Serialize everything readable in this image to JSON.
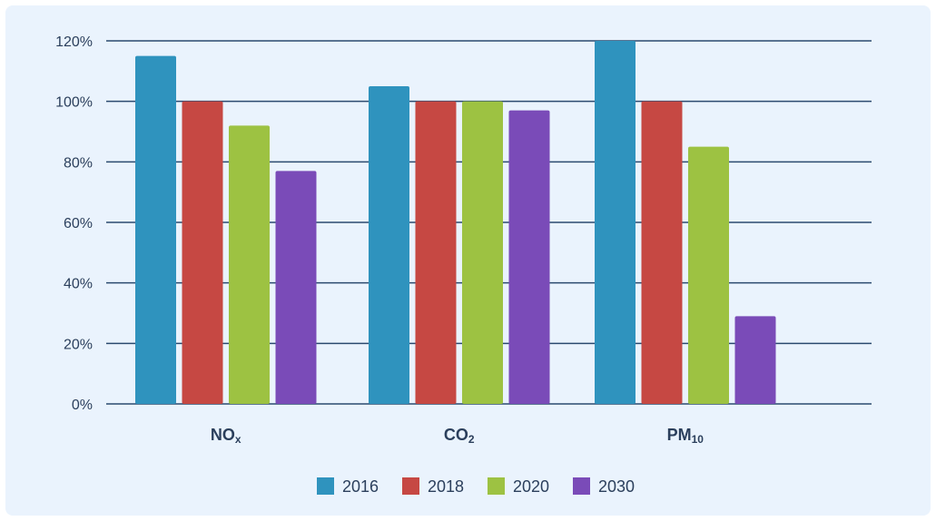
{
  "chart_data": {
    "type": "bar",
    "categories": [
      {
        "base": "NO",
        "sub": "x"
      },
      {
        "base": "CO",
        "sub": "2"
      },
      {
        "base": "PM",
        "sub": "10"
      }
    ],
    "series": [
      {
        "name": "2016",
        "color": "#2f93be",
        "values": [
          115,
          105,
          120
        ]
      },
      {
        "name": "2018",
        "color": "#c64843",
        "values": [
          100,
          100,
          100
        ]
      },
      {
        "name": "2020",
        "color": "#9dc242",
        "values": [
          92,
          100,
          85
        ]
      },
      {
        "name": "2030",
        "color": "#7a4bb8",
        "values": [
          77,
          97,
          29
        ]
      }
    ],
    "ylim": [
      0,
      120
    ],
    "yticks": [
      "0%",
      "20%",
      "40%",
      "60%",
      "80%",
      "100%",
      "120%"
    ],
    "grid": true,
    "legend_position": "bottom",
    "title": "",
    "xlabel": "",
    "ylabel": ""
  },
  "colors": {
    "background": "#eaf3fd",
    "gridline": "#2b4a6f",
    "text": "#2b3f5c"
  }
}
